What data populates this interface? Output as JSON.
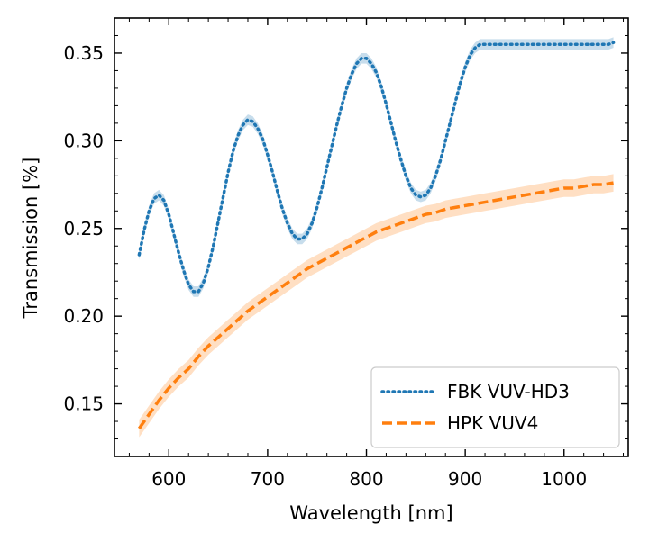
{
  "chart_data": {
    "type": "line",
    "xlabel": "Wavelength [nm]",
    "ylabel": "Transmission [%]",
    "xlim": [
      545,
      1065
    ],
    "ylim": [
      0.12,
      0.37
    ],
    "xticks": [
      600,
      700,
      800,
      900,
      1000
    ],
    "xtick_labels": [
      "600",
      "700",
      "800",
      "900",
      "1000"
    ],
    "yticks": [
      0.15,
      0.2,
      0.25,
      0.3,
      0.35
    ],
    "ytick_labels": [
      "0.15",
      "0.20",
      "0.25",
      "0.30",
      "0.35"
    ],
    "legend_position": "lower-right",
    "series": [
      {
        "name": "FBK VUV-HD3",
        "color": "#1f77b4",
        "style": "dotted",
        "band_halfwidth": 0.003,
        "x": [
          570,
          575,
          580,
          585,
          590,
          595,
          600,
          605,
          610,
          615,
          620,
          625,
          630,
          635,
          640,
          645,
          650,
          655,
          660,
          665,
          670,
          675,
          680,
          685,
          690,
          695,
          700,
          705,
          710,
          715,
          720,
          725,
          730,
          735,
          740,
          745,
          750,
          755,
          760,
          765,
          770,
          775,
          780,
          785,
          790,
          795,
          800,
          805,
          810,
          815,
          820,
          825,
          830,
          835,
          840,
          845,
          850,
          855,
          860,
          865,
          870,
          875,
          880,
          885,
          890,
          895,
          900,
          905,
          910,
          915,
          920,
          925,
          930,
          935,
          940,
          945,
          950,
          955,
          960,
          965,
          970,
          975,
          980,
          985,
          990,
          995,
          1000,
          1005,
          1010,
          1015,
          1020,
          1025,
          1030,
          1035,
          1040,
          1045,
          1050
        ],
        "values": [
          0.235,
          0.249,
          0.26,
          0.267,
          0.269,
          0.266,
          0.258,
          0.247,
          0.236,
          0.226,
          0.218,
          0.214,
          0.214,
          0.219,
          0.228,
          0.24,
          0.254,
          0.268,
          0.282,
          0.294,
          0.303,
          0.309,
          0.312,
          0.311,
          0.307,
          0.301,
          0.292,
          0.282,
          0.271,
          0.261,
          0.253,
          0.247,
          0.244,
          0.244,
          0.247,
          0.253,
          0.262,
          0.273,
          0.285,
          0.297,
          0.309,
          0.32,
          0.33,
          0.338,
          0.344,
          0.347,
          0.347,
          0.344,
          0.339,
          0.331,
          0.321,
          0.31,
          0.299,
          0.289,
          0.28,
          0.273,
          0.269,
          0.268,
          0.269,
          0.273,
          0.28,
          0.289,
          0.3,
          0.311,
          0.322,
          0.333,
          0.342,
          0.349,
          0.353,
          0.355,
          0.355,
          0.355,
          0.355,
          0.355,
          0.355,
          0.355,
          0.355,
          0.355,
          0.355,
          0.355,
          0.355,
          0.355,
          0.355,
          0.355,
          0.355,
          0.355,
          0.355,
          0.355,
          0.355,
          0.355,
          0.355,
          0.355,
          0.355,
          0.355,
          0.355,
          0.355,
          0.356
        ]
      },
      {
        "name": "HPK VUV4",
        "color": "#ff7f0e",
        "style": "dashed",
        "band_halfwidth": 0.005,
        "x": [
          570,
          580,
          590,
          600,
          610,
          620,
          630,
          640,
          650,
          660,
          670,
          680,
          690,
          700,
          710,
          720,
          730,
          740,
          750,
          760,
          770,
          780,
          790,
          800,
          810,
          820,
          830,
          840,
          850,
          860,
          870,
          880,
          890,
          900,
          910,
          920,
          930,
          940,
          950,
          960,
          970,
          980,
          990,
          1000,
          1010,
          1020,
          1030,
          1040,
          1050
        ],
        "values": [
          0.136,
          0.144,
          0.152,
          0.159,
          0.165,
          0.17,
          0.177,
          0.183,
          0.188,
          0.193,
          0.198,
          0.203,
          0.207,
          0.211,
          0.215,
          0.219,
          0.223,
          0.227,
          0.23,
          0.233,
          0.236,
          0.239,
          0.242,
          0.245,
          0.248,
          0.25,
          0.252,
          0.254,
          0.256,
          0.258,
          0.259,
          0.261,
          0.262,
          0.263,
          0.264,
          0.265,
          0.266,
          0.267,
          0.268,
          0.269,
          0.27,
          0.271,
          0.272,
          0.273,
          0.273,
          0.274,
          0.275,
          0.275,
          0.276
        ]
      }
    ]
  }
}
